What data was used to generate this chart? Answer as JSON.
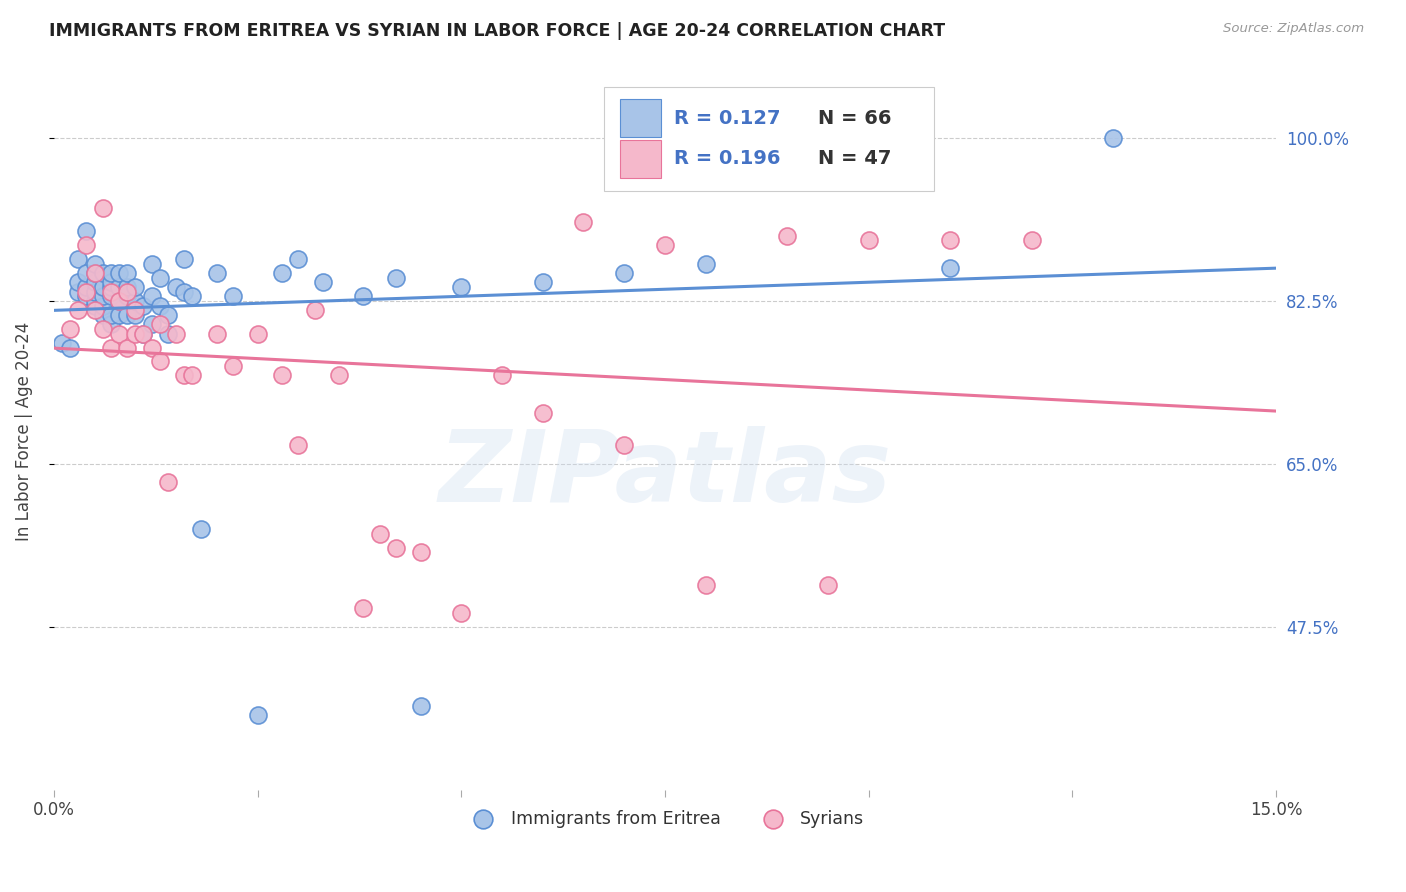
{
  "title": "IMMIGRANTS FROM ERITREA VS SYRIAN IN LABOR FORCE | AGE 20-24 CORRELATION CHART",
  "source": "Source: ZipAtlas.com",
  "ylabel": "In Labor Force | Age 20-24",
  "yticks_labels": [
    "100.0%",
    "82.5%",
    "65.0%",
    "47.5%"
  ],
  "ytick_values": [
    1.0,
    0.825,
    0.65,
    0.475
  ],
  "xmin": 0.0,
  "xmax": 0.15,
  "ymin": 0.3,
  "ymax": 1.07,
  "legend_R1": "0.127",
  "legend_N1": "66",
  "legend_R2": "0.196",
  "legend_N2": "47",
  "color_eritrea_fill": "#a8c4e8",
  "color_eritrea_edge": "#5b8fd4",
  "color_syrian_fill": "#f5b8cb",
  "color_syrian_edge": "#e8749a",
  "color_line_blue": "#5b8fd4",
  "color_line_pink": "#e8749a",
  "color_legend_val": "#4472c4",
  "color_ytick": "#4472c4",
  "watermark_text": "ZIPatlas",
  "bottom_label1": "Immigrants from Eritrea",
  "bottom_label2": "Syrians",
  "eritrea_x": [
    0.001,
    0.002,
    0.003,
    0.003,
    0.003,
    0.004,
    0.004,
    0.004,
    0.004,
    0.005,
    0.005,
    0.005,
    0.005,
    0.005,
    0.005,
    0.006,
    0.006,
    0.006,
    0.006,
    0.006,
    0.007,
    0.007,
    0.007,
    0.007,
    0.007,
    0.007,
    0.008,
    0.008,
    0.008,
    0.008,
    0.009,
    0.009,
    0.009,
    0.009,
    0.01,
    0.01,
    0.01,
    0.011,
    0.011,
    0.012,
    0.012,
    0.012,
    0.013,
    0.013,
    0.014,
    0.014,
    0.015,
    0.016,
    0.016,
    0.017,
    0.018,
    0.02,
    0.022,
    0.025,
    0.028,
    0.03,
    0.033,
    0.038,
    0.042,
    0.045,
    0.05,
    0.06,
    0.07,
    0.08,
    0.11,
    0.13
  ],
  "eritrea_y": [
    0.78,
    0.775,
    0.835,
    0.845,
    0.87,
    0.83,
    0.84,
    0.855,
    0.9,
    0.82,
    0.825,
    0.835,
    0.845,
    0.855,
    0.865,
    0.81,
    0.82,
    0.83,
    0.84,
    0.855,
    0.8,
    0.81,
    0.83,
    0.84,
    0.845,
    0.855,
    0.81,
    0.825,
    0.84,
    0.855,
    0.81,
    0.83,
    0.84,
    0.855,
    0.81,
    0.825,
    0.84,
    0.79,
    0.82,
    0.8,
    0.83,
    0.865,
    0.82,
    0.85,
    0.79,
    0.81,
    0.84,
    0.835,
    0.87,
    0.83,
    0.58,
    0.855,
    0.83,
    0.38,
    0.855,
    0.87,
    0.845,
    0.83,
    0.85,
    0.39,
    0.84,
    0.845,
    0.855,
    0.865,
    0.86,
    1.0
  ],
  "syrian_x": [
    0.002,
    0.003,
    0.004,
    0.004,
    0.005,
    0.005,
    0.006,
    0.006,
    0.007,
    0.007,
    0.008,
    0.008,
    0.009,
    0.009,
    0.01,
    0.01,
    0.011,
    0.012,
    0.013,
    0.013,
    0.014,
    0.015,
    0.016,
    0.017,
    0.02,
    0.022,
    0.025,
    0.028,
    0.03,
    0.032,
    0.035,
    0.038,
    0.04,
    0.042,
    0.045,
    0.05,
    0.055,
    0.06,
    0.065,
    0.07,
    0.075,
    0.08,
    0.09,
    0.095,
    0.1,
    0.11,
    0.12
  ],
  "syrian_y": [
    0.795,
    0.815,
    0.835,
    0.885,
    0.815,
    0.855,
    0.795,
    0.925,
    0.775,
    0.835,
    0.79,
    0.825,
    0.775,
    0.835,
    0.79,
    0.815,
    0.79,
    0.775,
    0.76,
    0.8,
    0.63,
    0.79,
    0.745,
    0.745,
    0.79,
    0.755,
    0.79,
    0.745,
    0.67,
    0.815,
    0.745,
    0.495,
    0.575,
    0.56,
    0.555,
    0.49,
    0.745,
    0.705,
    0.91,
    0.67,
    0.885,
    0.52,
    0.895,
    0.52,
    0.89,
    0.89,
    0.89
  ]
}
